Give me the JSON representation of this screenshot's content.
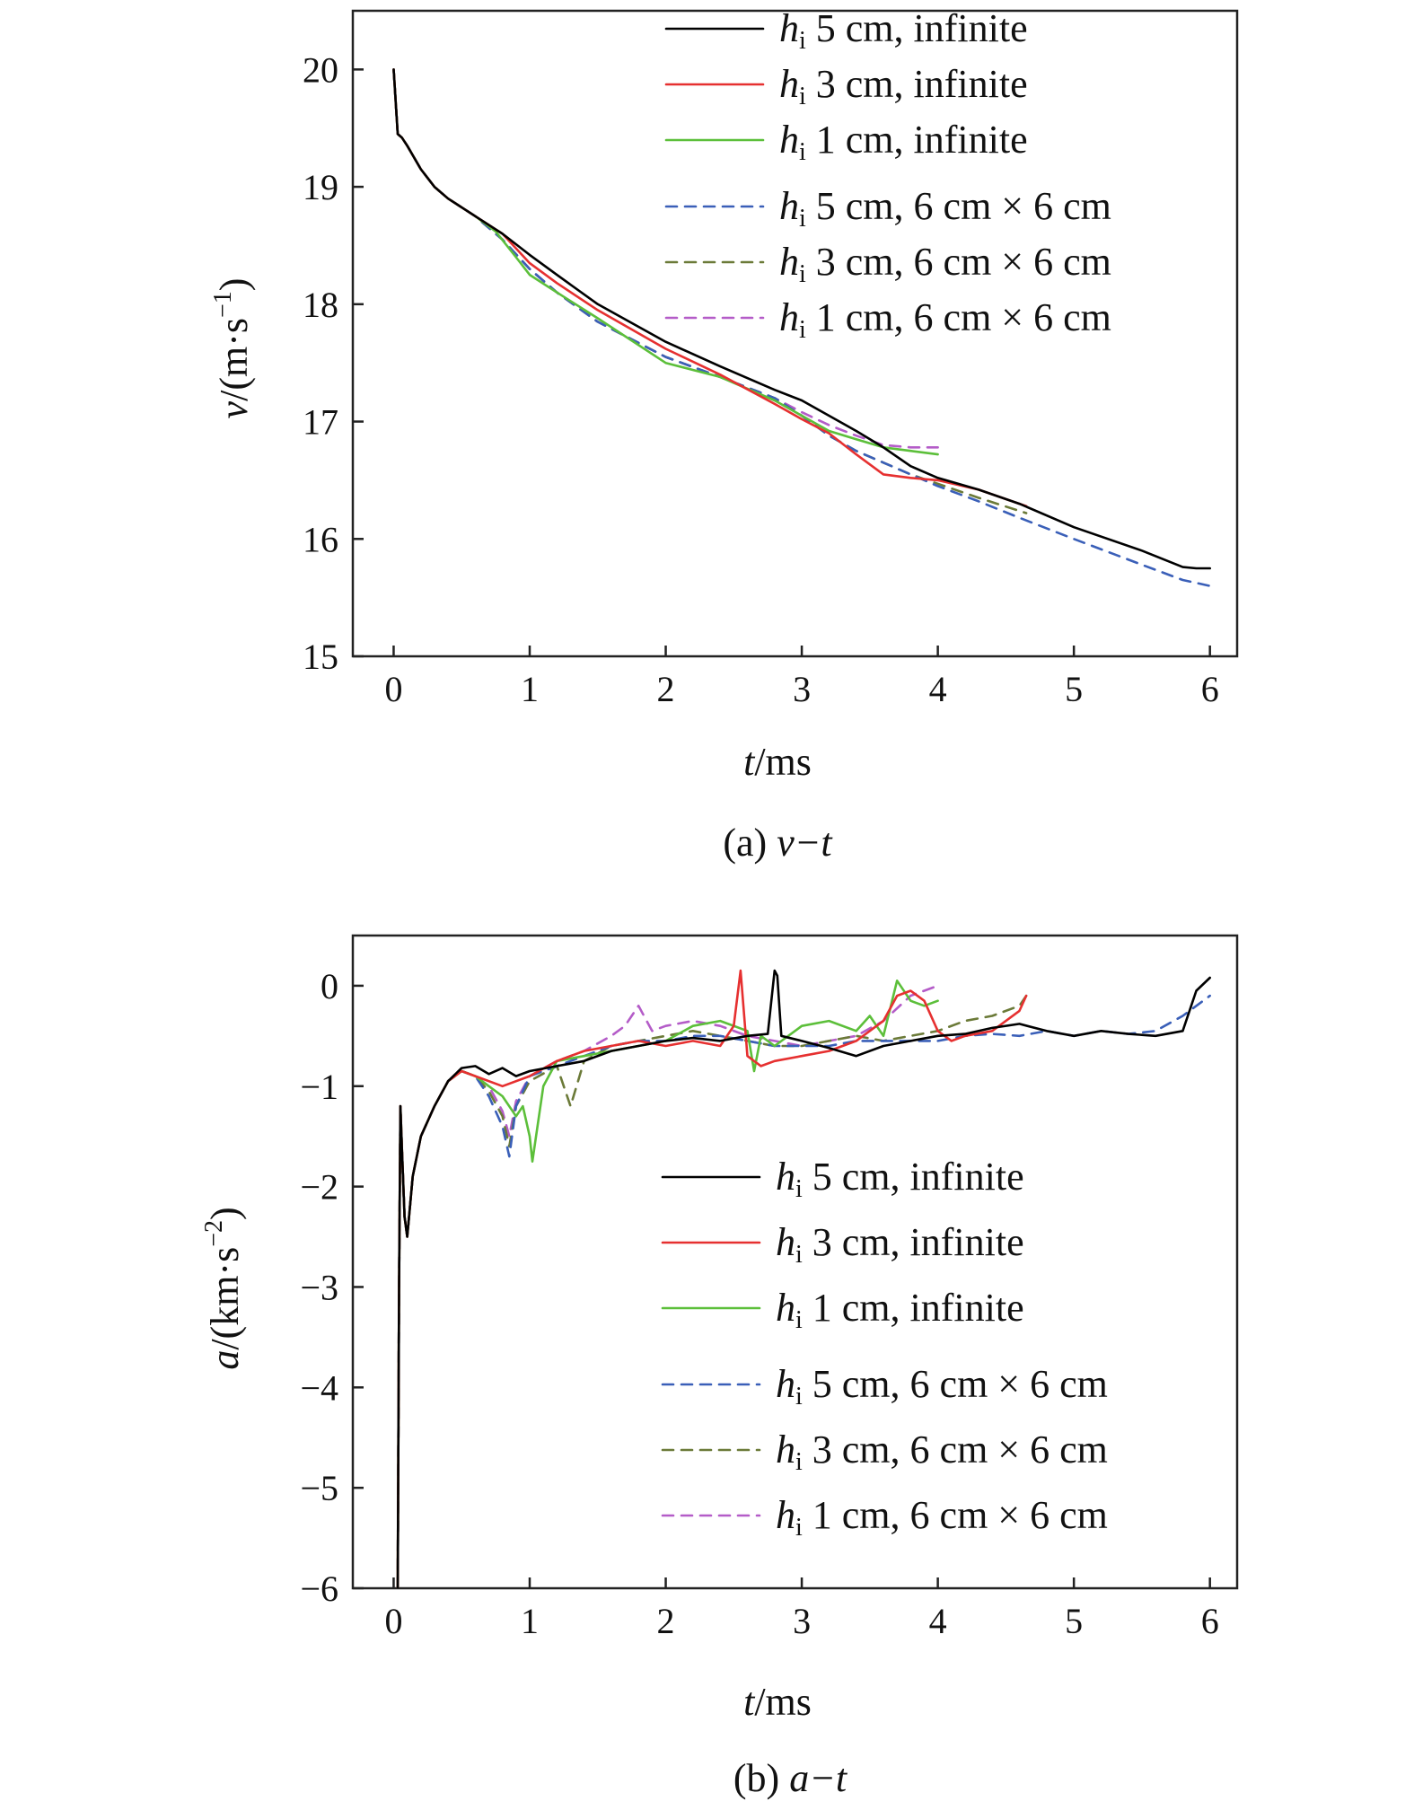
{
  "chart_data": [
    {
      "type": "line",
      "caption_prefix": "(a) ",
      "caption_symbol": "v−t",
      "xlabel": {
        "symbol": "t",
        "rest": "/ms"
      },
      "ylabel": {
        "symbol": "v",
        "rest": "/(m·s",
        "sup": "−1",
        "close": ")"
      },
      "xlim": [
        -0.3,
        6.2
      ],
      "ylim": [
        15,
        20.5
      ],
      "xticks": [
        0,
        1,
        2,
        3,
        4,
        5,
        6
      ],
      "yticks": [
        15,
        16,
        17,
        18,
        19,
        20
      ],
      "legend_position": "top-right",
      "series": [
        {
          "name_pre": "h",
          "name_sub": "i",
          "name_post": " 5 cm, infinite",
          "color": "#000000",
          "dash": false,
          "x": [
            0,
            0.03,
            0.06,
            0.1,
            0.2,
            0.3,
            0.4,
            0.6,
            0.8,
            1.0,
            1.2,
            1.5,
            2.0,
            2.4,
            2.8,
            3.0,
            3.2,
            3.4,
            3.6,
            3.8,
            4.0,
            4.3,
            4.6,
            5.0,
            5.5,
            5.8,
            5.9,
            6.0
          ],
          "y": [
            20.0,
            19.45,
            19.42,
            19.35,
            19.15,
            19.0,
            18.9,
            18.75,
            18.6,
            18.42,
            18.25,
            18.0,
            17.68,
            17.47,
            17.27,
            17.18,
            17.05,
            16.92,
            16.78,
            16.62,
            16.52,
            16.42,
            16.3,
            16.1,
            15.9,
            15.76,
            15.75,
            15.75
          ]
        },
        {
          "name_pre": "h",
          "name_sub": "i",
          "name_post": " 3 cm, infinite",
          "color": "#e63030",
          "dash": false,
          "x": [
            0,
            0.03,
            0.06,
            0.1,
            0.2,
            0.3,
            0.4,
            0.6,
            0.8,
            1.0,
            1.2,
            1.5,
            2.0,
            2.4,
            2.8,
            3.0,
            3.2,
            3.4,
            3.6,
            3.8,
            4.0,
            4.3,
            4.6,
            4.65
          ],
          "y": [
            20.0,
            19.45,
            19.42,
            19.35,
            19.15,
            19.0,
            18.9,
            18.75,
            18.6,
            18.35,
            18.18,
            17.95,
            17.62,
            17.4,
            17.15,
            17.02,
            16.9,
            16.72,
            16.55,
            16.52,
            16.5,
            16.42,
            16.3,
            16.28
          ]
        },
        {
          "name_pre": "h",
          "name_sub": "i",
          "name_post": " 1 cm, infinite",
          "color": "#5cbf3a",
          "dash": false,
          "x": [
            0,
            0.03,
            0.06,
            0.1,
            0.2,
            0.3,
            0.4,
            0.6,
            0.75,
            0.9,
            1.0,
            1.2,
            1.5,
            2.0,
            2.4,
            2.8,
            3.0,
            3.2,
            3.4,
            3.6,
            3.8,
            4.0
          ],
          "y": [
            20.0,
            19.45,
            19.42,
            19.35,
            19.15,
            19.0,
            18.9,
            18.75,
            18.62,
            18.4,
            18.25,
            18.1,
            17.88,
            17.5,
            17.38,
            17.18,
            17.05,
            16.92,
            16.85,
            16.78,
            16.75,
            16.72
          ]
        },
        {
          "name_pre": "h",
          "name_sub": "i",
          "name_post": " 5 cm, 6 cm × 6 cm",
          "color": "#3a5fb8",
          "dash": true,
          "x": [
            0,
            0.03,
            0.06,
            0.1,
            0.2,
            0.3,
            0.4,
            0.6,
            0.8,
            1.0,
            1.2,
            1.5,
            2.0,
            2.4,
            2.8,
            3.0,
            3.2,
            3.4,
            3.6,
            3.8,
            4.0,
            4.3,
            4.6,
            5.0,
            5.5,
            5.8,
            6.0
          ],
          "y": [
            20.0,
            19.45,
            19.42,
            19.35,
            19.15,
            19.0,
            18.9,
            18.75,
            18.55,
            18.3,
            18.1,
            17.85,
            17.55,
            17.38,
            17.2,
            17.05,
            16.88,
            16.75,
            16.65,
            16.55,
            16.45,
            16.32,
            16.18,
            16.0,
            15.78,
            15.65,
            15.6
          ]
        },
        {
          "name_pre": "h",
          "name_sub": "i",
          "name_post": " 3 cm, 6 cm × 6 cm",
          "color": "#6b7a38",
          "dash": true,
          "x": [
            0,
            0.03,
            0.06,
            0.1,
            0.2,
            0.3,
            0.4,
            0.6,
            0.8,
            1.0,
            1.2,
            1.5,
            2.0,
            2.4,
            2.8,
            3.0,
            3.2,
            3.4,
            3.6,
            3.8,
            4.0,
            4.3,
            4.65
          ],
          "y": [
            20.0,
            19.45,
            19.42,
            19.35,
            19.15,
            19.0,
            18.9,
            18.75,
            18.55,
            18.3,
            18.1,
            17.85,
            17.55,
            17.38,
            17.2,
            17.05,
            16.88,
            16.75,
            16.65,
            16.55,
            16.47,
            16.35,
            16.22
          ]
        },
        {
          "name_pre": "h",
          "name_sub": "i",
          "name_post": " 1 cm, 6 cm × 6 cm",
          "color": "#b45cc8",
          "dash": true,
          "x": [
            0,
            0.03,
            0.06,
            0.1,
            0.2,
            0.3,
            0.4,
            0.6,
            0.8,
            1.0,
            1.2,
            1.5,
            2.0,
            2.4,
            2.8,
            3.0,
            3.2,
            3.4,
            3.6,
            3.8,
            4.0
          ],
          "y": [
            20.0,
            19.45,
            19.42,
            19.35,
            19.15,
            19.0,
            18.9,
            18.75,
            18.55,
            18.3,
            18.1,
            17.85,
            17.55,
            17.38,
            17.2,
            17.08,
            16.97,
            16.88,
            16.8,
            16.78,
            16.78
          ]
        }
      ]
    },
    {
      "type": "line",
      "caption_prefix": "(b) ",
      "caption_symbol": "a−t",
      "xlabel": {
        "symbol": "t",
        "rest": "/ms"
      },
      "ylabel": {
        "symbol": "a",
        "rest": "/(km·s",
        "sup": "−2",
        "close": ")"
      },
      "xlim": [
        -0.3,
        6.2
      ],
      "ylim": [
        -6,
        0.5
      ],
      "xticks": [
        0,
        1,
        2,
        3,
        4,
        5,
        6
      ],
      "yticks": [
        -6,
        -5,
        -4,
        -3,
        -2,
        -1,
        0
      ],
      "ytick_labels": [
        "−6",
        "−5",
        "−4",
        "−3",
        "−2",
        "−1",
        "0"
      ],
      "legend_position": "bottom-right",
      "series": [
        {
          "name_pre": "h",
          "name_sub": "i",
          "name_post": " 5 cm, infinite",
          "color": "#000000",
          "dash": false,
          "x": [
            0.03,
            0.04,
            0.05,
            0.06,
            0.08,
            0.1,
            0.14,
            0.2,
            0.3,
            0.4,
            0.5,
            0.6,
            0.7,
            0.8,
            0.9,
            1.0,
            1.2,
            1.4,
            1.6,
            1.8,
            2.0,
            2.2,
            2.4,
            2.6,
            2.75,
            2.8,
            2.82,
            2.85,
            3.0,
            3.2,
            3.4,
            3.6,
            3.8,
            4.0,
            4.2,
            4.4,
            4.6,
            4.8,
            5.0,
            5.2,
            5.4,
            5.6,
            5.8,
            5.9,
            6.0
          ],
          "y": [
            -6.0,
            -3.0,
            -1.2,
            -1.6,
            -2.3,
            -2.5,
            -1.9,
            -1.5,
            -1.2,
            -0.95,
            -0.82,
            -0.8,
            -0.88,
            -0.82,
            -0.9,
            -0.85,
            -0.8,
            -0.75,
            -0.65,
            -0.6,
            -0.55,
            -0.52,
            -0.55,
            -0.5,
            -0.48,
            0.15,
            0.1,
            -0.5,
            -0.55,
            -0.62,
            -0.7,
            -0.6,
            -0.55,
            -0.5,
            -0.48,
            -0.42,
            -0.38,
            -0.45,
            -0.5,
            -0.45,
            -0.48,
            -0.5,
            -0.45,
            -0.05,
            0.08
          ]
        },
        {
          "name_pre": "h",
          "name_sub": "i",
          "name_post": " 3 cm, infinite",
          "color": "#e63030",
          "dash": false,
          "x": [
            0.03,
            0.04,
            0.05,
            0.06,
            0.08,
            0.1,
            0.14,
            0.2,
            0.3,
            0.4,
            0.5,
            0.6,
            0.8,
            1.0,
            1.2,
            1.4,
            1.6,
            1.8,
            2.0,
            2.2,
            2.4,
            2.5,
            2.55,
            2.6,
            2.7,
            2.8,
            3.0,
            3.2,
            3.4,
            3.6,
            3.7,
            3.8,
            3.9,
            4.0,
            4.1,
            4.2,
            4.4,
            4.6,
            4.65
          ],
          "y": [
            -6.0,
            -3.0,
            -1.2,
            -1.6,
            -2.3,
            -2.5,
            -1.9,
            -1.5,
            -1.2,
            -0.95,
            -0.85,
            -0.9,
            -1.0,
            -0.9,
            -0.75,
            -0.65,
            -0.6,
            -0.55,
            -0.6,
            -0.55,
            -0.6,
            -0.4,
            0.15,
            -0.7,
            -0.8,
            -0.75,
            -0.7,
            -0.65,
            -0.55,
            -0.35,
            -0.1,
            -0.05,
            -0.15,
            -0.45,
            -0.55,
            -0.5,
            -0.45,
            -0.25,
            -0.1
          ]
        },
        {
          "name_pre": "h",
          "name_sub": "i",
          "name_post": " 1 cm, infinite",
          "color": "#5cbf3a",
          "dash": false,
          "x": [
            0.03,
            0.04,
            0.05,
            0.06,
            0.08,
            0.1,
            0.14,
            0.2,
            0.3,
            0.4,
            0.5,
            0.6,
            0.7,
            0.8,
            0.9,
            0.95,
            1.0,
            1.02,
            1.1,
            1.2,
            1.4,
            1.6,
            1.8,
            2.0,
            2.2,
            2.4,
            2.6,
            2.65,
            2.7,
            2.8,
            3.0,
            3.2,
            3.4,
            3.5,
            3.6,
            3.7,
            3.8,
            3.9,
            4.0
          ],
          "y": [
            -6.0,
            -3.0,
            -1.2,
            -1.6,
            -2.3,
            -2.5,
            -1.9,
            -1.5,
            -1.2,
            -0.95,
            -0.85,
            -0.9,
            -1.0,
            -1.1,
            -1.3,
            -1.2,
            -1.5,
            -1.75,
            -1.0,
            -0.75,
            -0.7,
            -0.65,
            -0.6,
            -0.55,
            -0.4,
            -0.35,
            -0.45,
            -0.85,
            -0.5,
            -0.6,
            -0.4,
            -0.35,
            -0.45,
            -0.3,
            -0.5,
            0.05,
            -0.15,
            -0.2,
            -0.15
          ]
        },
        {
          "name_pre": "h",
          "name_sub": "i",
          "name_post": " 5 cm, 6 cm × 6 cm",
          "color": "#3a5fb8",
          "dash": true,
          "x": [
            0.03,
            0.04,
            0.05,
            0.06,
            0.08,
            0.1,
            0.14,
            0.2,
            0.3,
            0.4,
            0.5,
            0.6,
            0.7,
            0.8,
            0.85,
            0.9,
            1.0,
            1.2,
            1.4,
            1.6,
            1.8,
            2.0,
            2.2,
            2.4,
            2.6,
            2.8,
            3.0,
            3.2,
            3.4,
            3.6,
            3.8,
            4.0,
            4.2,
            4.4,
            4.6,
            4.8,
            5.0,
            5.2,
            5.4,
            5.6,
            5.8,
            6.0
          ],
          "y": [
            -6.0,
            -3.0,
            -1.2,
            -1.6,
            -2.3,
            -2.5,
            -1.9,
            -1.5,
            -1.2,
            -0.95,
            -0.85,
            -0.9,
            -1.1,
            -1.4,
            -1.7,
            -1.2,
            -0.9,
            -0.8,
            -0.7,
            -0.6,
            -0.55,
            -0.55,
            -0.5,
            -0.5,
            -0.55,
            -0.6,
            -0.6,
            -0.6,
            -0.55,
            -0.55,
            -0.55,
            -0.55,
            -0.5,
            -0.48,
            -0.5,
            -0.45,
            -0.5,
            -0.45,
            -0.48,
            -0.45,
            -0.3,
            -0.1
          ]
        },
        {
          "name_pre": "h",
          "name_sub": "i",
          "name_post": " 3 cm, 6 cm × 6 cm",
          "color": "#6b7a38",
          "dash": true,
          "x": [
            0.03,
            0.04,
            0.05,
            0.06,
            0.08,
            0.1,
            0.14,
            0.2,
            0.3,
            0.4,
            0.5,
            0.6,
            0.7,
            0.8,
            0.85,
            0.9,
            1.0,
            1.2,
            1.3,
            1.4,
            1.6,
            1.8,
            2.0,
            2.2,
            2.4,
            2.6,
            2.8,
            3.0,
            3.2,
            3.4,
            3.6,
            3.8,
            4.0,
            4.2,
            4.4,
            4.6,
            4.65
          ],
          "y": [
            -6.0,
            -3.0,
            -1.2,
            -1.6,
            -2.3,
            -2.5,
            -1.9,
            -1.5,
            -1.2,
            -0.95,
            -0.85,
            -0.9,
            -1.05,
            -1.3,
            -1.6,
            -1.2,
            -0.95,
            -0.8,
            -1.2,
            -0.75,
            -0.6,
            -0.55,
            -0.5,
            -0.45,
            -0.5,
            -0.55,
            -0.6,
            -0.6,
            -0.55,
            -0.5,
            -0.55,
            -0.5,
            -0.45,
            -0.35,
            -0.3,
            -0.2,
            -0.1
          ]
        },
        {
          "name_pre": "h",
          "name_sub": "i",
          "name_post": " 1 cm, 6 cm × 6 cm",
          "color": "#b45cc8",
          "dash": true,
          "x": [
            0.03,
            0.04,
            0.05,
            0.06,
            0.08,
            0.1,
            0.14,
            0.2,
            0.3,
            0.4,
            0.5,
            0.6,
            0.7,
            0.8,
            0.85,
            0.9,
            1.0,
            1.2,
            1.4,
            1.6,
            1.7,
            1.8,
            1.9,
            2.0,
            2.2,
            2.4,
            2.6,
            2.8,
            3.0,
            3.2,
            3.4,
            3.6,
            3.8,
            3.9,
            4.0
          ],
          "y": [
            -6.0,
            -3.0,
            -1.2,
            -1.6,
            -2.3,
            -2.5,
            -1.9,
            -1.5,
            -1.2,
            -0.95,
            -0.85,
            -0.9,
            -1.0,
            -1.25,
            -1.5,
            -1.15,
            -0.9,
            -0.75,
            -0.65,
            -0.5,
            -0.4,
            -0.2,
            -0.45,
            -0.4,
            -0.35,
            -0.4,
            -0.5,
            -0.55,
            -0.6,
            -0.55,
            -0.5,
            -0.35,
            -0.1,
            -0.05,
            0.0
          ]
        }
      ]
    }
  ]
}
